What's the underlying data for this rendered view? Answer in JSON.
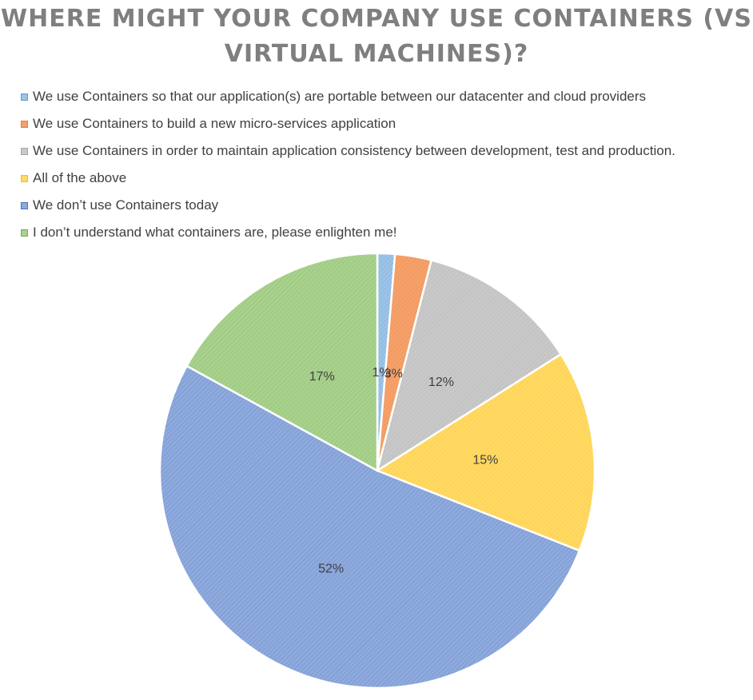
{
  "chart_data": {
    "type": "pie",
    "title": "WHERE MIGHT YOUR COMPANY USE CONTAINERS (VS\nVIRTUAL MACHINES)?",
    "legend_position": "top",
    "categories": [
      "We use Containers so that our application(s) are portable between our datacenter and cloud providers",
      "We use Containers to build a new micro-services application",
      "We use Containers  in order to maintain application consistency between development, test and production.",
      "All of the above",
      "We don’t use Containers today",
      "I don’t understand what containers are, please enlighten me!"
    ],
    "values": [
      1.3,
      2.7,
      12,
      15,
      52,
      17
    ],
    "data_labels": [
      "1%",
      "3%",
      "12%",
      "15%",
      "52%",
      "17%"
    ],
    "colors": [
      "#9dc3e6",
      "#f4a16b",
      "#c9c9c9",
      "#ffd966",
      "#8faadc",
      "#a9d18e"
    ],
    "edge_colors": [
      "#5b9bd5",
      "#ed7d31",
      "#a5a5a5",
      "#ffc000",
      "#4472c4",
      "#70ad47"
    ]
  }
}
